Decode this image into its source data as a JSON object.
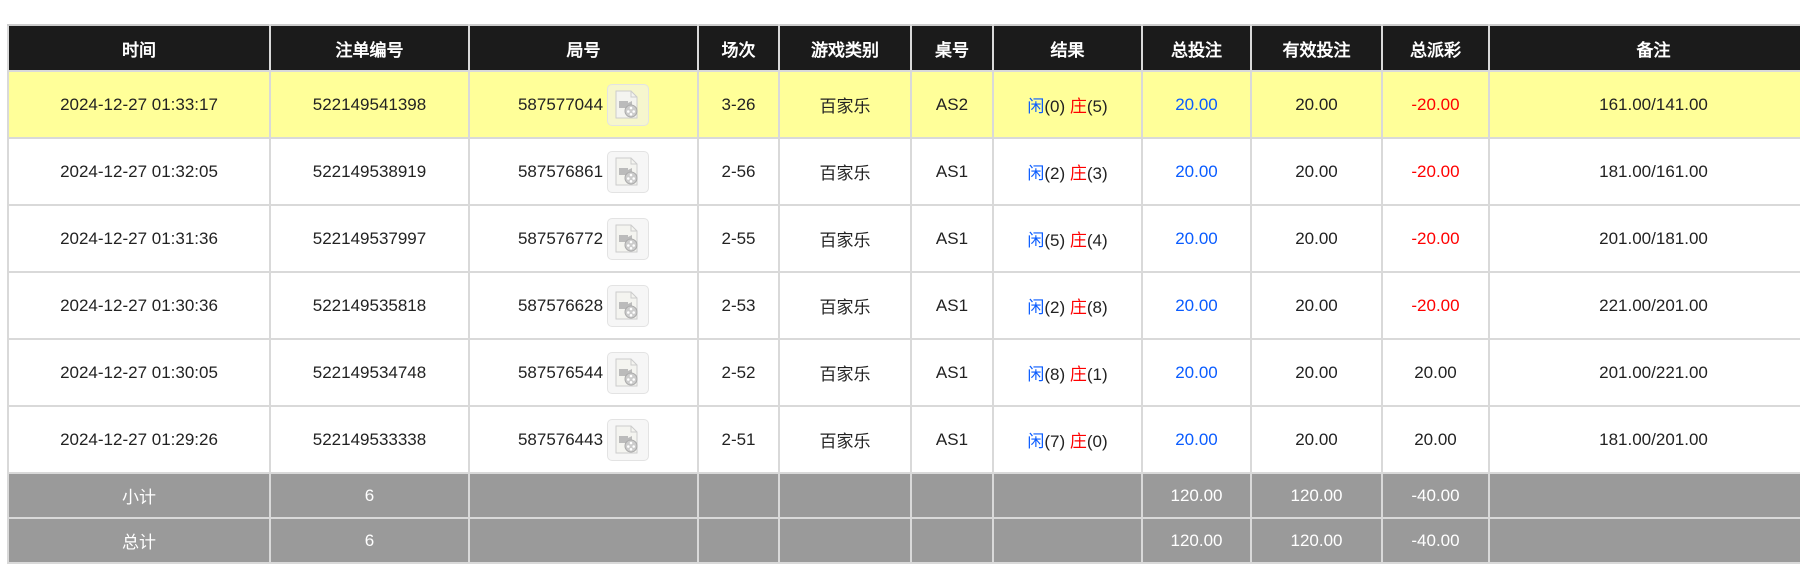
{
  "headers": [
    "时间",
    "注单编号",
    "局号",
    "场次",
    "游戏类别",
    "桌号",
    "结果",
    "总投注",
    "有效投注",
    "总派彩",
    "备注"
  ],
  "rows": [
    {
      "time": "2024-12-27 01:33:17",
      "bet_id": "522149541398",
      "round": "587577044",
      "shoe": "3-26",
      "game": "百家乐",
      "table": "AS2",
      "player_label": "闲",
      "player": "(0)",
      "banker_label": "庄",
      "banker": "(5)",
      "total_bet": "20.00",
      "valid_bet": "20.00",
      "payout": "-20.00",
      "payout_negative": true,
      "note": "161.00/141.00",
      "highlighted": true
    },
    {
      "time": "2024-12-27 01:32:05",
      "bet_id": "522149538919",
      "round": "587576861",
      "shoe": "2-56",
      "game": "百家乐",
      "table": "AS1",
      "player_label": "闲",
      "player": "(2)",
      "banker_label": "庄",
      "banker": "(3)",
      "total_bet": "20.00",
      "valid_bet": "20.00",
      "payout": "-20.00",
      "payout_negative": true,
      "note": "181.00/161.00"
    },
    {
      "time": "2024-12-27 01:31:36",
      "bet_id": "522149537997",
      "round": "587576772",
      "shoe": "2-55",
      "game": "百家乐",
      "table": "AS1",
      "player_label": "闲",
      "player": "(5)",
      "banker_label": "庄",
      "banker": "(4)",
      "total_bet": "20.00",
      "valid_bet": "20.00",
      "payout": "-20.00",
      "payout_negative": true,
      "note": "201.00/181.00"
    },
    {
      "time": "2024-12-27 01:30:36",
      "bet_id": "522149535818",
      "round": "587576628",
      "shoe": "2-53",
      "game": "百家乐",
      "table": "AS1",
      "player_label": "闲",
      "player": "(2)",
      "banker_label": "庄",
      "banker": "(8)",
      "total_bet": "20.00",
      "valid_bet": "20.00",
      "payout": "-20.00",
      "payout_negative": true,
      "note": "221.00/201.00"
    },
    {
      "time": "2024-12-27 01:30:05",
      "bet_id": "522149534748",
      "round": "587576544",
      "shoe": "2-52",
      "game": "百家乐",
      "table": "AS1",
      "player_label": "闲",
      "player": "(8)",
      "banker_label": "庄",
      "banker": "(1)",
      "total_bet": "20.00",
      "valid_bet": "20.00",
      "payout": "20.00",
      "payout_negative": false,
      "note": "201.00/221.00"
    },
    {
      "time": "2024-12-27 01:29:26",
      "bet_id": "522149533338",
      "round": "587576443",
      "shoe": "2-51",
      "game": "百家乐",
      "table": "AS1",
      "player_label": "闲",
      "player": "(7)",
      "banker_label": "庄",
      "banker": "(0)",
      "total_bet": "20.00",
      "valid_bet": "20.00",
      "payout": "20.00",
      "payout_negative": false,
      "note": "181.00/201.00"
    }
  ],
  "subtotal": {
    "label": "小计",
    "count": "6",
    "total_bet": "120.00",
    "valid_bet": "120.00",
    "payout": "-40.00"
  },
  "total": {
    "label": "总计",
    "count": "6",
    "total_bet": "120.00",
    "valid_bet": "120.00",
    "payout": "-40.00"
  },
  "colors": {
    "header_bg": "#1b1b1b",
    "highlight": "#ffff99",
    "summary_bg": "#9a9a9a",
    "player_blue": "#0a5cff",
    "negative_red": "#ff0000"
  },
  "icons": {
    "replay": "video-replay-icon"
  }
}
